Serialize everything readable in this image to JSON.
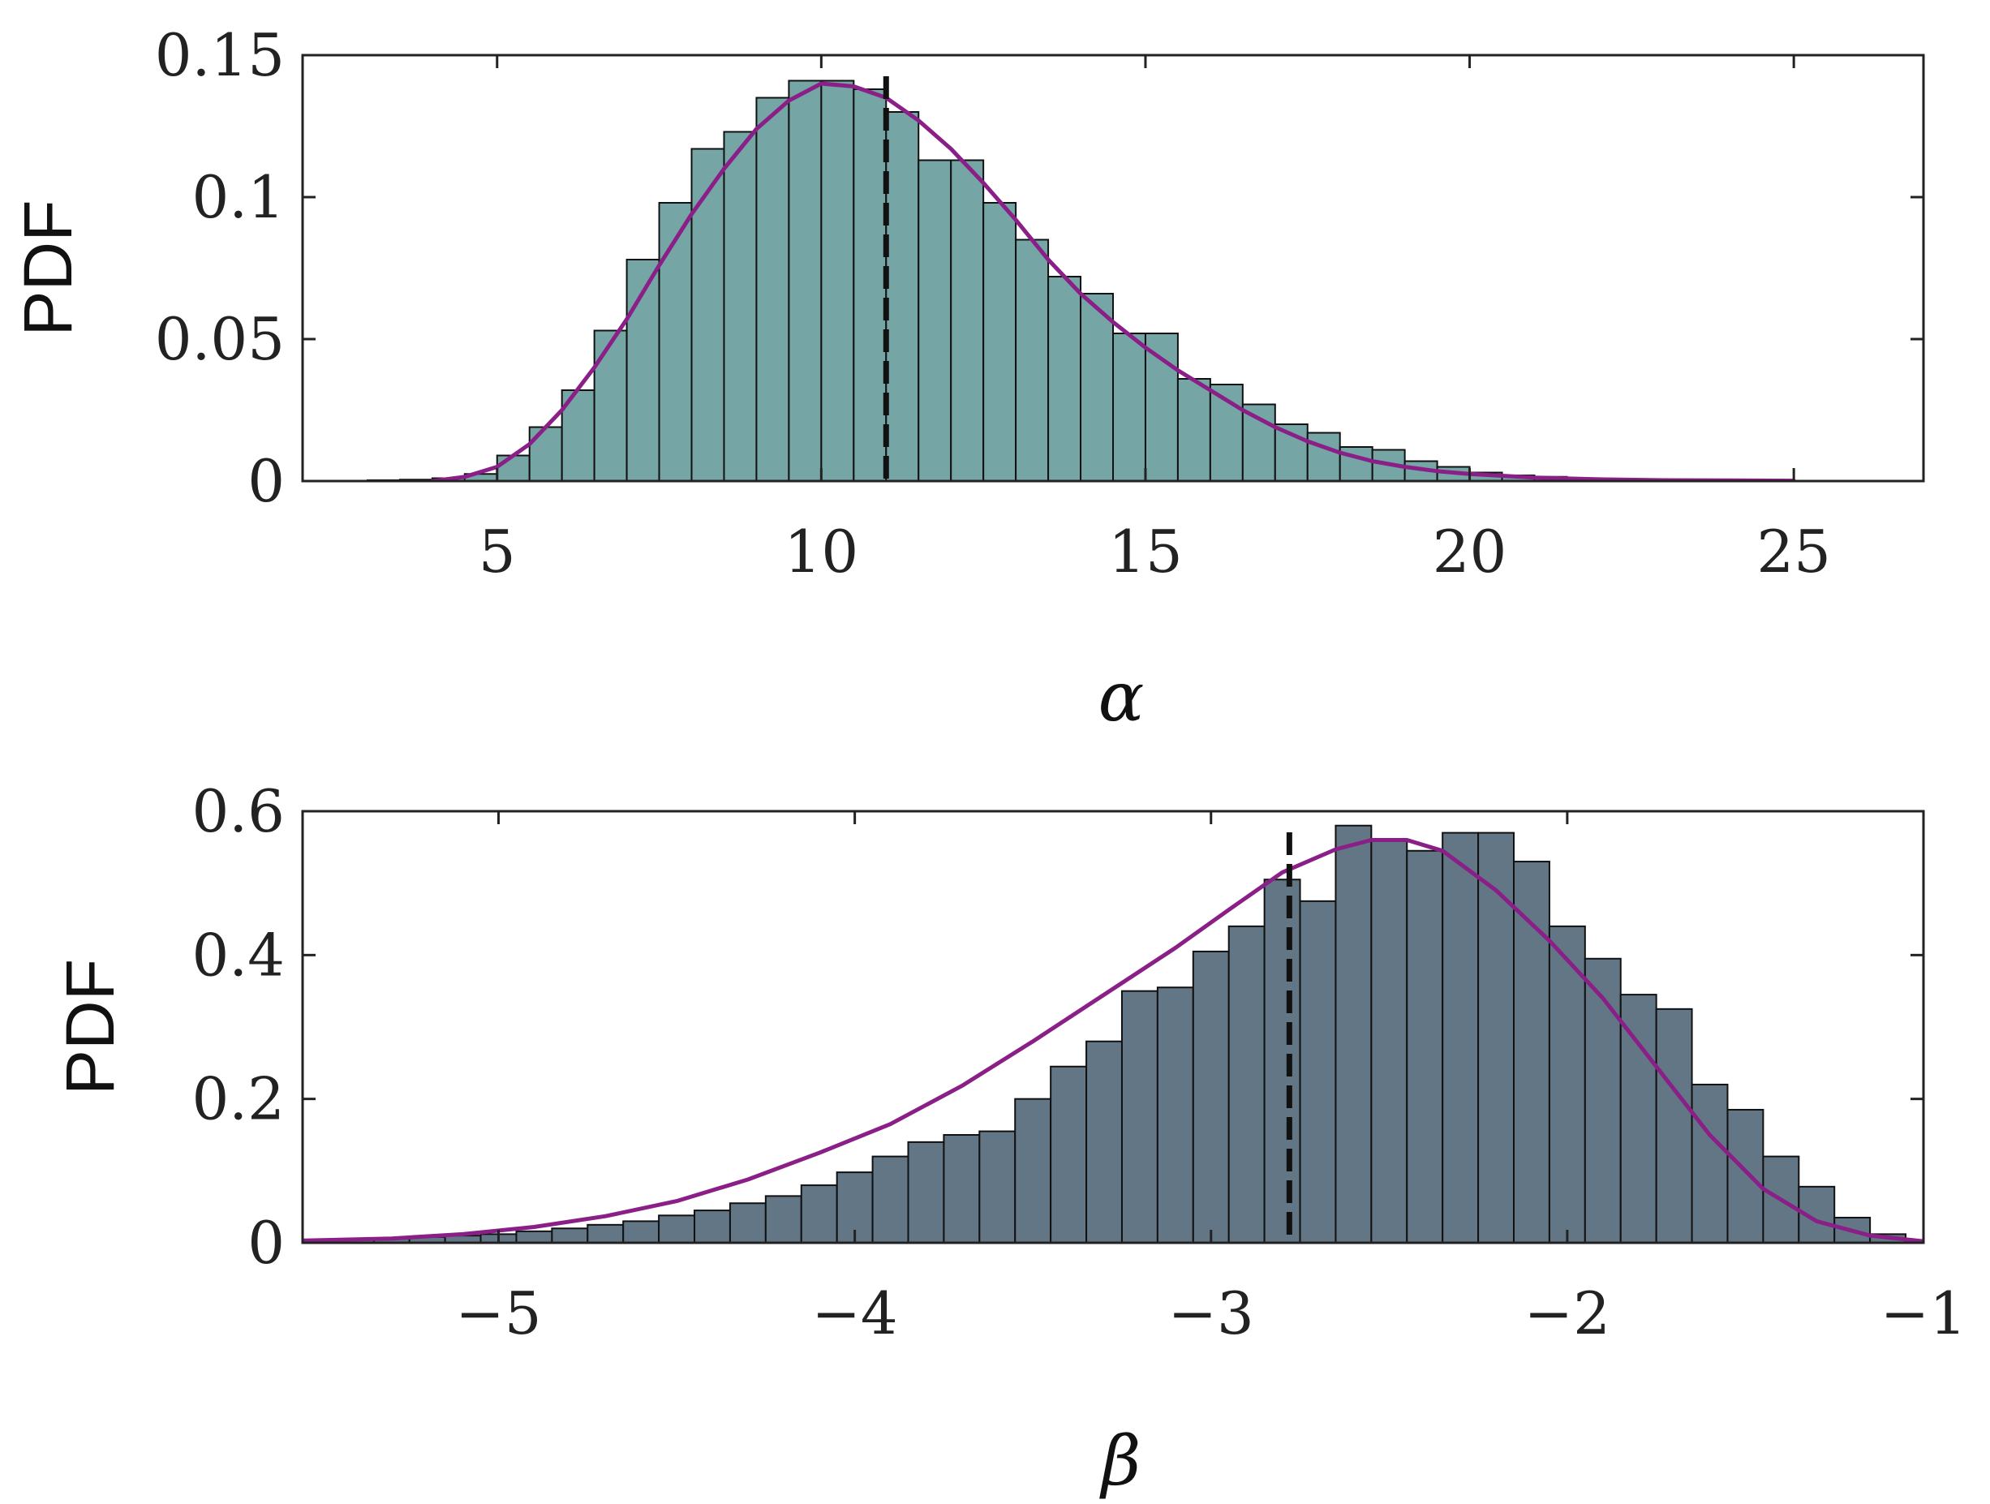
{
  "chart_data": [
    {
      "type": "bar",
      "panel": "top",
      "xlabel": "α",
      "ylabel": "PDF",
      "xlim": [
        2,
        27
      ],
      "ylim": [
        0,
        0.15
      ],
      "xticks": [
        5,
        10,
        15,
        20,
        25
      ],
      "yticks": [
        0,
        0.05,
        0.1,
        0.15
      ],
      "xtick_labels": [
        "5",
        "10",
        "15",
        "20",
        "25"
      ],
      "ytick_labels": [
        "0",
        "0.05",
        "0.1",
        "0.15"
      ],
      "bar_color": "#75a5a5",
      "bin_edges": [
        3,
        3.5,
        4,
        4.5,
        5,
        5.5,
        6,
        6.5,
        7,
        7.5,
        8,
        8.5,
        9,
        9.5,
        10,
        10.5,
        11,
        11.5,
        12,
        12.5,
        13,
        13.5,
        14,
        14.5,
        15,
        15.5,
        16,
        16.5,
        17,
        17.5,
        18,
        18.5,
        19,
        19.5,
        20,
        20.5,
        21,
        21.5,
        22,
        22.5,
        23,
        23.5,
        24,
        24.5,
        25,
        25.5,
        26,
        26.5,
        27
      ],
      "values": [
        0.0003,
        0.0005,
        0.001,
        0.0025,
        0.009,
        0.019,
        0.032,
        0.053,
        0.078,
        0.098,
        0.117,
        0.123,
        0.135,
        0.141,
        0.141,
        0.138,
        0.13,
        0.113,
        0.113,
        0.098,
        0.085,
        0.072,
        0.066,
        0.052,
        0.052,
        0.036,
        0.034,
        0.027,
        0.02,
        0.017,
        0.012,
        0.011,
        0.007,
        0.005,
        0.003,
        0.002,
        0.0015,
        0.001,
        0.0008,
        0.0005,
        0.0004,
        0.0003,
        0.0002,
        0.0002,
        0.0001,
        0.0001,
        0.0001,
        0.0001
      ],
      "kde_color": "#8b1f88",
      "kde": {
        "x": [
          4,
          4.5,
          5,
          5.5,
          6,
          6.5,
          7,
          7.5,
          8,
          8.5,
          9,
          9.5,
          10,
          10.5,
          11,
          11.5,
          12,
          12.5,
          13,
          13.5,
          14,
          14.5,
          15,
          15.5,
          16,
          16.5,
          17,
          17.5,
          18,
          18.5,
          19,
          19.5,
          20,
          21,
          22,
          23,
          24,
          25
        ],
        "y": [
          0,
          0.0015,
          0.005,
          0.013,
          0.025,
          0.04,
          0.057,
          0.076,
          0.094,
          0.11,
          0.124,
          0.134,
          0.14,
          0.139,
          0.135,
          0.127,
          0.117,
          0.105,
          0.092,
          0.078,
          0.066,
          0.056,
          0.047,
          0.039,
          0.032,
          0.025,
          0.019,
          0.014,
          0.01,
          0.007,
          0.005,
          0.0035,
          0.0025,
          0.0012,
          0.0006,
          0.0003,
          0.0002,
          0.0001
        ]
      },
      "reference_line": {
        "x": 11,
        "style": "dashed",
        "color": "#111111"
      }
    },
    {
      "type": "bar",
      "panel": "bottom",
      "xlabel": "β",
      "ylabel": "PDF",
      "xlim": [
        -5.55,
        -1
      ],
      "ylim": [
        0,
        0.6
      ],
      "xticks": [
        -5,
        -4,
        -3,
        -2,
        -1
      ],
      "yticks": [
        0,
        0.2,
        0.4,
        0.6
      ],
      "xtick_labels": [
        "−5",
        "−4",
        "−3",
        "−2",
        "−1"
      ],
      "ytick_labels": [
        "0",
        "0.2",
        "0.4",
        "0.6"
      ],
      "bar_color": "#627686",
      "bin_edges": [
        -5.55,
        -5.45,
        -5.35,
        -5.25,
        -5.15,
        -5.05,
        -4.95,
        -4.85,
        -4.75,
        -4.65,
        -4.55,
        -4.45,
        -4.35,
        -4.25,
        -4.15,
        -4.05,
        -3.95,
        -3.85,
        -3.75,
        -3.65,
        -3.55,
        -3.45,
        -3.35,
        -3.25,
        -3.15,
        -3.05,
        -2.95,
        -2.85,
        -2.75,
        -2.65,
        -2.55,
        -2.45,
        -2.35,
        -2.25,
        -2.15,
        -2.05,
        -1.95,
        -1.85,
        -1.75,
        -1.65,
        -1.55,
        -1.45,
        -1.35,
        -1.25,
        -1.15,
        -1.05
      ],
      "values": [
        0.003,
        0.004,
        0.006,
        0.008,
        0.01,
        0.012,
        0.016,
        0.02,
        0.025,
        0.03,
        0.038,
        0.045,
        0.055,
        0.065,
        0.08,
        0.098,
        0.12,
        0.14,
        0.15,
        0.155,
        0.2,
        0.245,
        0.28,
        0.35,
        0.355,
        0.405,
        0.44,
        0.505,
        0.475,
        0.58,
        0.56,
        0.545,
        0.57,
        0.57,
        0.53,
        0.44,
        0.395,
        0.345,
        0.325,
        0.22,
        0.185,
        0.12,
        0.078,
        0.035,
        0.012
      ],
      "kde_color": "#8b1f88",
      "kde": {
        "x": [
          -5.55,
          -5.3,
          -5.1,
          -4.9,
          -4.7,
          -4.5,
          -4.3,
          -4.1,
          -3.9,
          -3.7,
          -3.5,
          -3.3,
          -3.1,
          -2.95,
          -2.8,
          -2.65,
          -2.55,
          -2.45,
          -2.35,
          -2.2,
          -2.05,
          -1.9,
          -1.75,
          -1.6,
          -1.45,
          -1.3,
          -1.15,
          -1.0
        ],
        "y": [
          0.003,
          0.006,
          0.012,
          0.022,
          0.037,
          0.058,
          0.088,
          0.125,
          0.165,
          0.218,
          0.28,
          0.345,
          0.41,
          0.463,
          0.515,
          0.547,
          0.56,
          0.56,
          0.545,
          0.49,
          0.42,
          0.34,
          0.245,
          0.15,
          0.075,
          0.03,
          0.01,
          0.002
        ]
      },
      "reference_line": {
        "x": -2.78,
        "style": "dashed",
        "color": "#111111"
      }
    }
  ]
}
